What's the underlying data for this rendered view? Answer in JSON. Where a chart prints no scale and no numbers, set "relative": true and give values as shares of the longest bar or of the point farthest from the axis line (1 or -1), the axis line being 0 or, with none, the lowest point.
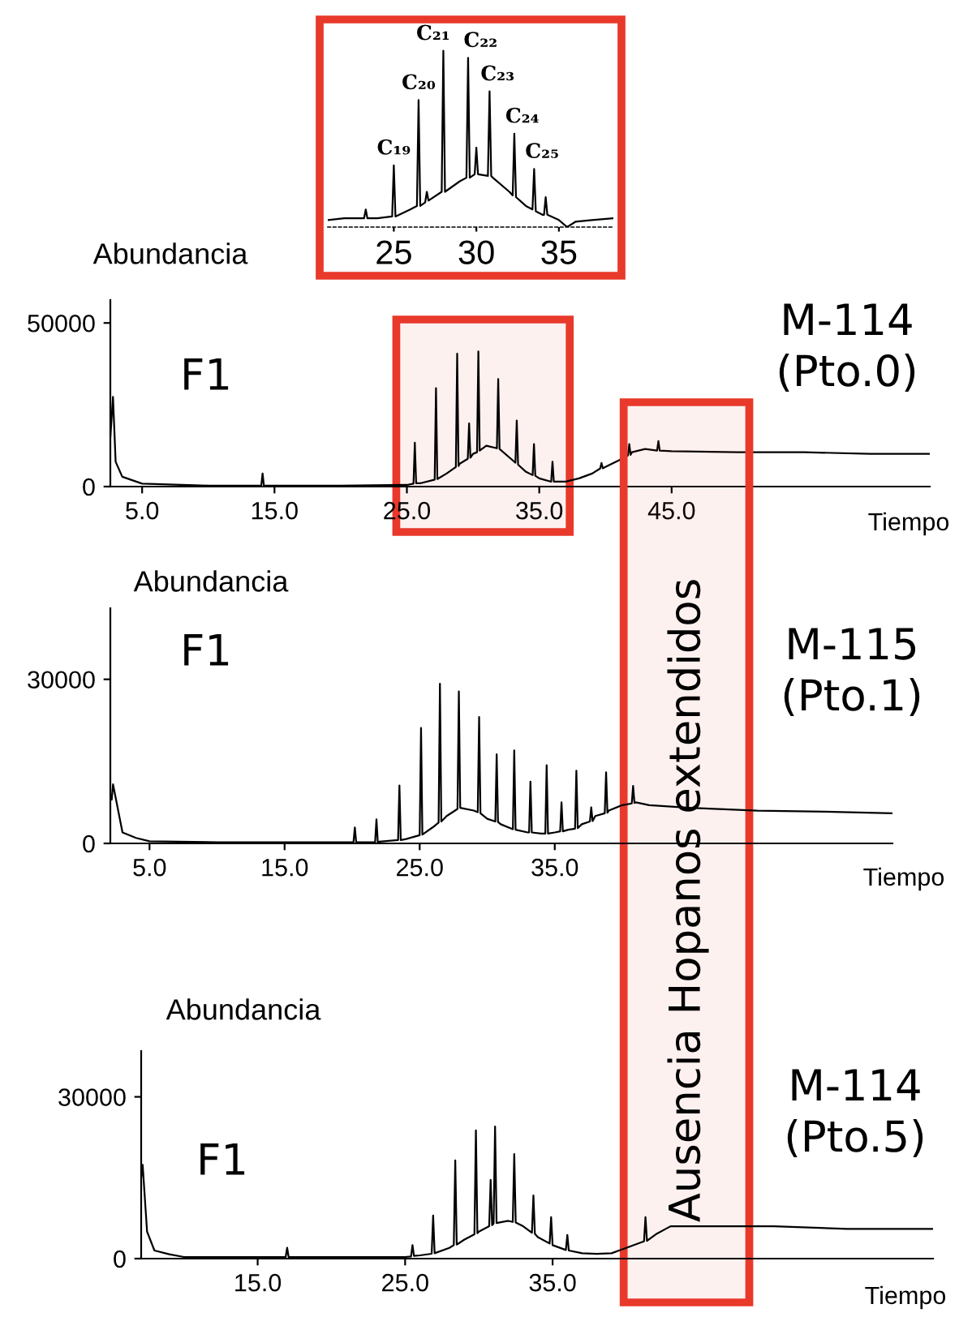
{
  "chart_data": [
    {
      "type": "line",
      "relative": true,
      "xlim": [
        21,
        38.3
      ],
      "xticks": [
        25,
        30,
        35
      ],
      "series": [
        {
          "color": "#000000",
          "x": [
            21,
            22,
            23.2,
            23.3,
            23.4,
            24,
            24.9,
            25.0,
            25.1,
            26,
            26.4,
            26.5,
            26.6,
            26.9,
            27.0,
            27.1,
            27.9,
            28.0,
            28.1,
            29,
            29.4,
            29.5,
            29.6,
            29.9,
            30.0,
            30.1,
            30.7,
            30.8,
            30.9,
            31,
            32,
            32.2,
            32.3,
            32.4,
            33,
            33.4,
            33.5,
            33.6,
            34,
            34.1,
            34.2,
            34.3,
            35,
            35.5,
            36,
            37,
            38.3
          ],
          "values": [
            0.04,
            0.05,
            0.05,
            0.1,
            0.05,
            0.05,
            0.06,
            0.35,
            0.06,
            0.1,
            0.12,
            0.72,
            0.12,
            0.14,
            0.2,
            0.15,
            0.2,
            1.0,
            0.2,
            0.26,
            0.28,
            0.96,
            0.28,
            0.3,
            0.45,
            0.3,
            0.29,
            0.77,
            0.29,
            0.28,
            0.2,
            0.18,
            0.53,
            0.17,
            0.12,
            0.1,
            0.33,
            0.09,
            0.07,
            0.07,
            0.17,
            0.07,
            0.04,
            0,
            0.03,
            0.04,
            0.05
          ]
        }
      ],
      "annotations": [
        {
          "text": "C₁₉",
          "x": 25.0,
          "y": 0.35
        },
        {
          "text": "C₂₀",
          "x": 26.5,
          "y": 0.72
        },
        {
          "text": "C₂₁",
          "x": 28.0,
          "y": 1.0
        },
        {
          "text": "C₂₂",
          "x": 29.5,
          "y": 0.96
        },
        {
          "text": "C₂₃",
          "x": 30.8,
          "y": 0.77
        },
        {
          "text": "C₂₄",
          "x": 32.3,
          "y": 0.53
        },
        {
          "text": "C₂₅",
          "x": 33.5,
          "y": 0.33
        }
      ]
    },
    {
      "type": "line",
      "ylabel": "Abundancia",
      "xlabel": "Tiempo",
      "xlim": [
        2.6,
        64.5
      ],
      "ylim": [
        0,
        57000
      ],
      "xticks": [
        {
          "value": 5,
          "label": "5.0"
        },
        {
          "value": 15,
          "label": "15.0"
        },
        {
          "value": 25,
          "label": "25.0"
        },
        {
          "value": 35,
          "label": "35.0"
        },
        {
          "value": 45,
          "label": "45.0"
        }
      ],
      "yticks": [
        0,
        50000
      ],
      "series": [
        {
          "color": "#000000",
          "x": [
            2.6,
            2.8,
            3.0,
            3.5,
            5,
            10,
            14.0,
            14.1,
            14.2,
            20,
            25,
            25.5,
            25.6,
            25.7,
            26,
            27,
            27.1,
            27.2,
            27.3,
            28,
            28.7,
            28.8,
            28.9,
            29,
            29.6,
            29.7,
            29.8,
            30,
            30.3,
            30.4,
            30.5,
            31,
            31.8,
            31.9,
            32,
            33,
            33.2,
            33.3,
            33.4,
            34,
            34.5,
            34.6,
            34.7,
            35,
            35.9,
            36.0,
            36.1,
            37,
            38,
            39,
            39.6,
            39.7,
            39.8,
            40,
            41,
            41.7,
            41.8,
            41.9,
            42,
            43,
            43.9,
            44.0,
            44.1,
            45,
            50,
            55,
            60,
            64.5
          ],
          "values": [
            15000,
            27400,
            7600,
            3000,
            900,
            300,
            300,
            4000,
            300,
            300,
            500,
            900,
            13400,
            1000,
            1000,
            2000,
            2100,
            30100,
            2300,
            4000,
            6000,
            40600,
            6300,
            7000,
            8500,
            19300,
            8800,
            10000,
            10500,
            41300,
            11000,
            12500,
            11700,
            32900,
            11500,
            8000,
            7300,
            20200,
            6700,
            4500,
            3500,
            13000,
            3300,
            2500,
            1500,
            7600,
            1500,
            1500,
            2500,
            4000,
            5500,
            7200,
            5600,
            6000,
            8000,
            9500,
            13000,
            9700,
            10500,
            11500,
            11000,
            13900,
            11000,
            10800,
            10500,
            10500,
            10000,
            10000
          ]
        }
      ],
      "bands": [
        {
          "axis": "x",
          "from": 24.2,
          "to": 37.3,
          "color": "#e8392b"
        }
      ],
      "annotations": [
        "F1",
        "M-114\n(Pto.0)"
      ]
    },
    {
      "type": "line",
      "ylabel": "Abundancia",
      "xlabel": "Tiempo",
      "xlim": [
        2.1,
        60
      ],
      "ylim": [
        0,
        43000
      ],
      "xticks": [
        {
          "value": 5,
          "label": "5.0"
        },
        {
          "value": 15,
          "label": "15.0"
        },
        {
          "value": 25,
          "label": "25.0"
        },
        {
          "value": 35,
          "label": "35.0"
        }
      ],
      "yticks": [
        0,
        30000
      ],
      "series": [
        {
          "color": "#000000",
          "x": [
            2.2,
            2.3,
            3,
            4,
            5,
            10,
            20.1,
            20.2,
            20.3,
            21.7,
            21.8,
            21.9,
            22,
            23.4,
            23.5,
            23.6,
            24,
            25,
            25.1,
            25.2,
            26,
            26.4,
            26.5,
            26.6,
            27,
            27.8,
            27.9,
            28,
            29,
            29.3,
            29.4,
            29.5,
            30,
            30.6,
            30.7,
            30.8,
            31,
            31.9,
            32.0,
            32.1,
            33,
            33.1,
            33.2,
            33.3,
            34,
            34.3,
            34.4,
            34.5,
            35,
            35.4,
            35.5,
            35.6,
            36,
            36.5,
            36.6,
            36.7,
            37,
            37.6,
            37.7,
            37.8,
            38,
            38.7,
            38.8,
            38.9,
            39,
            40,
            40.7,
            40.8,
            40.9,
            41,
            42,
            45,
            50,
            55,
            60
          ],
          "values": [
            8000,
            10800,
            2000,
            1000,
            400,
            200,
            200,
            2900,
            200,
            200,
            4400,
            200,
            300,
            600,
            10600,
            600,
            800,
            1500,
            21100,
            1600,
            3000,
            3800,
            29200,
            4000,
            5000,
            6300,
            27800,
            6500,
            6000,
            5700,
            23100,
            5500,
            4500,
            4000,
            16300,
            3900,
            3500,
            2600,
            17000,
            2500,
            2000,
            2000,
            11300,
            2000,
            1800,
            1800,
            14300,
            1800,
            2000,
            2200,
            7500,
            2200,
            2500,
            2700,
            13300,
            2800,
            3500,
            4000,
            6600,
            4100,
            5000,
            5500,
            13000,
            5600,
            6000,
            7000,
            7300,
            10500,
            7400,
            7500,
            7000,
            6500,
            6000,
            5800,
            5500
          ]
        }
      ],
      "bands": [
        {
          "axis": "x",
          "from": 40.1,
          "to": 49.4,
          "color": "#e8392b"
        }
      ],
      "annotations": [
        "F1",
        "M-115\n(Pto.1)",
        "Ausencia Hopanos extendidos"
      ]
    },
    {
      "type": "line",
      "ylabel": "Abundancia",
      "xlabel": "Tiempo",
      "xlim": [
        7.1,
        60.8
      ],
      "ylim": [
        0,
        38500
      ],
      "xticks": [
        {
          "value": 15,
          "label": "15.0"
        },
        {
          "value": 25,
          "label": "25.0"
        },
        {
          "value": 35,
          "label": "35.0"
        }
      ],
      "yticks": [
        0,
        30000
      ],
      "series": [
        {
          "color": "#000000",
          "x": [
            7.1,
            7.2,
            7.5,
            8,
            9,
            10,
            16.9,
            17.0,
            17.1,
            25,
            25.4,
            25.5,
            25.6,
            26,
            26.8,
            26.9,
            27,
            28,
            28.3,
            28.4,
            28.5,
            29,
            29.7,
            29.8,
            29.9,
            30,
            30.7,
            30.8,
            30.9,
            31,
            31.1,
            31.2,
            32,
            32.3,
            32.4,
            32.5,
            33,
            33.6,
            33.7,
            33.8,
            34,
            34.8,
            34.9,
            35,
            35.9,
            36.0,
            36.1,
            37,
            38,
            39,
            40,
            41,
            41.2,
            41.3,
            41.4,
            42,
            43,
            45,
            50,
            55,
            60.8
          ],
          "values": [
            15000,
            17400,
            5000,
            1500,
            800,
            300,
            300,
            2000,
            300,
            300,
            400,
            2500,
            500,
            600,
            900,
            8000,
            1000,
            2000,
            2500,
            18200,
            2600,
            3500,
            4500,
            23800,
            4700,
            5000,
            6000,
            14600,
            6200,
            6500,
            24500,
            6600,
            7000,
            6800,
            19400,
            6700,
            6000,
            4800,
            11700,
            4600,
            4000,
            2800,
            7700,
            2500,
            1600,
            4400,
            1500,
            1000,
            900,
            1000,
            2000,
            3000,
            3200,
            7700,
            3300,
            4500,
            6000,
            6000,
            6000,
            5500,
            5500
          ]
        }
      ],
      "annotations": [
        "F1",
        "M-114\n(Pto.5)"
      ]
    }
  ]
}
